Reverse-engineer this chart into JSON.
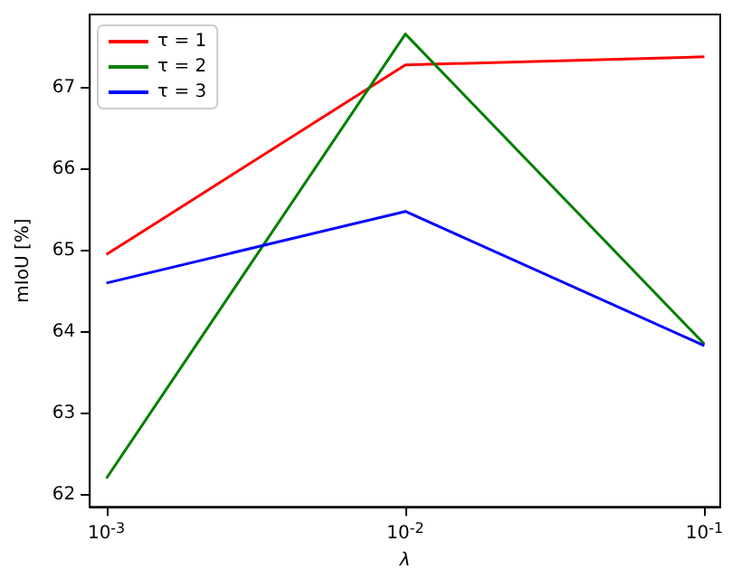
{
  "chart_data": {
    "type": "line",
    "xlabel": "λ",
    "ylabel": "mIoU [%]",
    "log": "x",
    "x": [
      0.001,
      0.01,
      0.1
    ],
    "series": [
      {
        "name": "τ = 1",
        "color": "#ff0000",
        "values": [
          64.95,
          67.28,
          67.38
        ]
      },
      {
        "name": "τ = 2",
        "color": "#008000",
        "values": [
          62.2,
          67.66,
          63.85
        ]
      },
      {
        "name": "τ = 3",
        "color": "#0000ff",
        "values": [
          64.6,
          65.48,
          63.83
        ]
      }
    ],
    "xlim": [
      0.00088,
      0.113
    ],
    "xticks": [
      {
        "value": 0.001,
        "label": "10$^{-3}$"
      },
      {
        "value": 0.01,
        "label": "10$^{-2}$"
      },
      {
        "value": 0.1,
        "label": "10$^{-1}$"
      }
    ],
    "ylim": [
      61.85,
      67.9
    ],
    "yticks": [
      62,
      63,
      64,
      65,
      66,
      67
    ],
    "grid": false,
    "legend": "top left",
    "marker": "none",
    "line_style": "solid"
  }
}
